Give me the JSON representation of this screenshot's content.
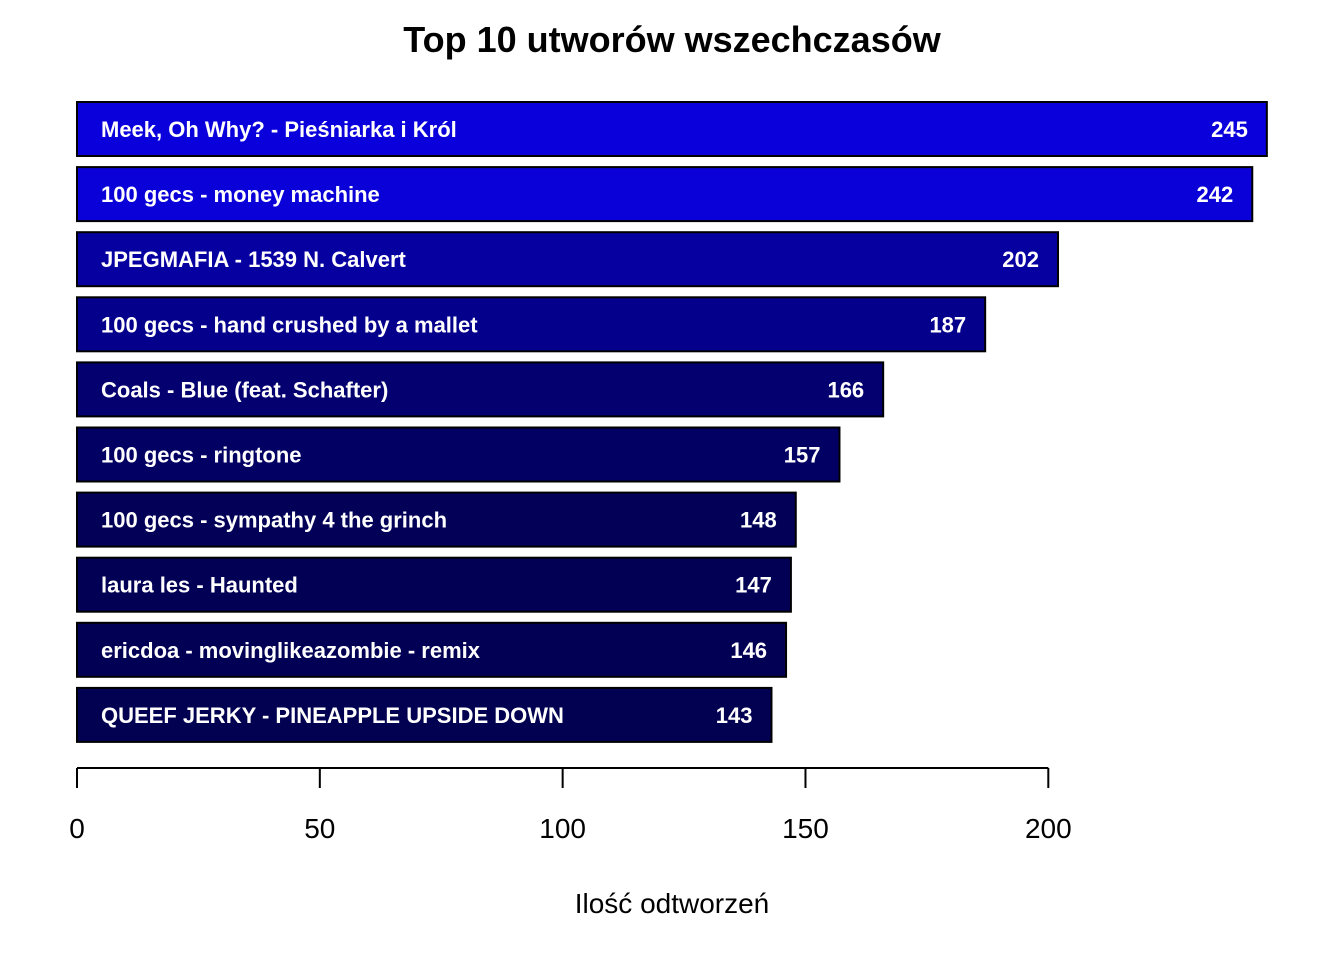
{
  "chart_data": {
    "type": "bar",
    "orientation": "horizontal",
    "title": "Top 10 utworów wszechczasów",
    "xlabel": "Ilość odtworzeń",
    "ylabel": "",
    "xlim": [
      0,
      245
    ],
    "x_ticks": [
      0,
      50,
      100,
      150,
      200
    ],
    "x_tick_labels": [
      "0",
      "50",
      "100",
      "150",
      "200"
    ],
    "grid": false,
    "legend": "none",
    "categories": [
      "Meek, Oh Why? - Pieśniarka i Król",
      "100 gecs - money machine",
      "JPEGMAFIA - 1539 N. Calvert",
      "100 gecs - hand crushed by a mallet",
      "Coals - Blue (feat. Schafter)",
      "100 gecs - ringtone",
      "100 gecs - sympathy 4 the grinch",
      "laura les - Haunted",
      "ericdoa - movinglikeazombie - remix",
      "QUEEF JERKY - PINEAPPLE UPSIDE DOWN"
    ],
    "values": [
      245,
      242,
      202,
      187,
      166,
      157,
      148,
      147,
      146,
      143
    ],
    "value_labels": [
      "245",
      "242",
      "202",
      "187",
      "166",
      "157",
      "148",
      "147",
      "146",
      "143"
    ],
    "colors": {
      "bar_high": "#0a00dc",
      "bar_low": "#020050",
      "bar_border": "#000000",
      "label_text": "#ffffff",
      "axis": "#000000"
    }
  }
}
